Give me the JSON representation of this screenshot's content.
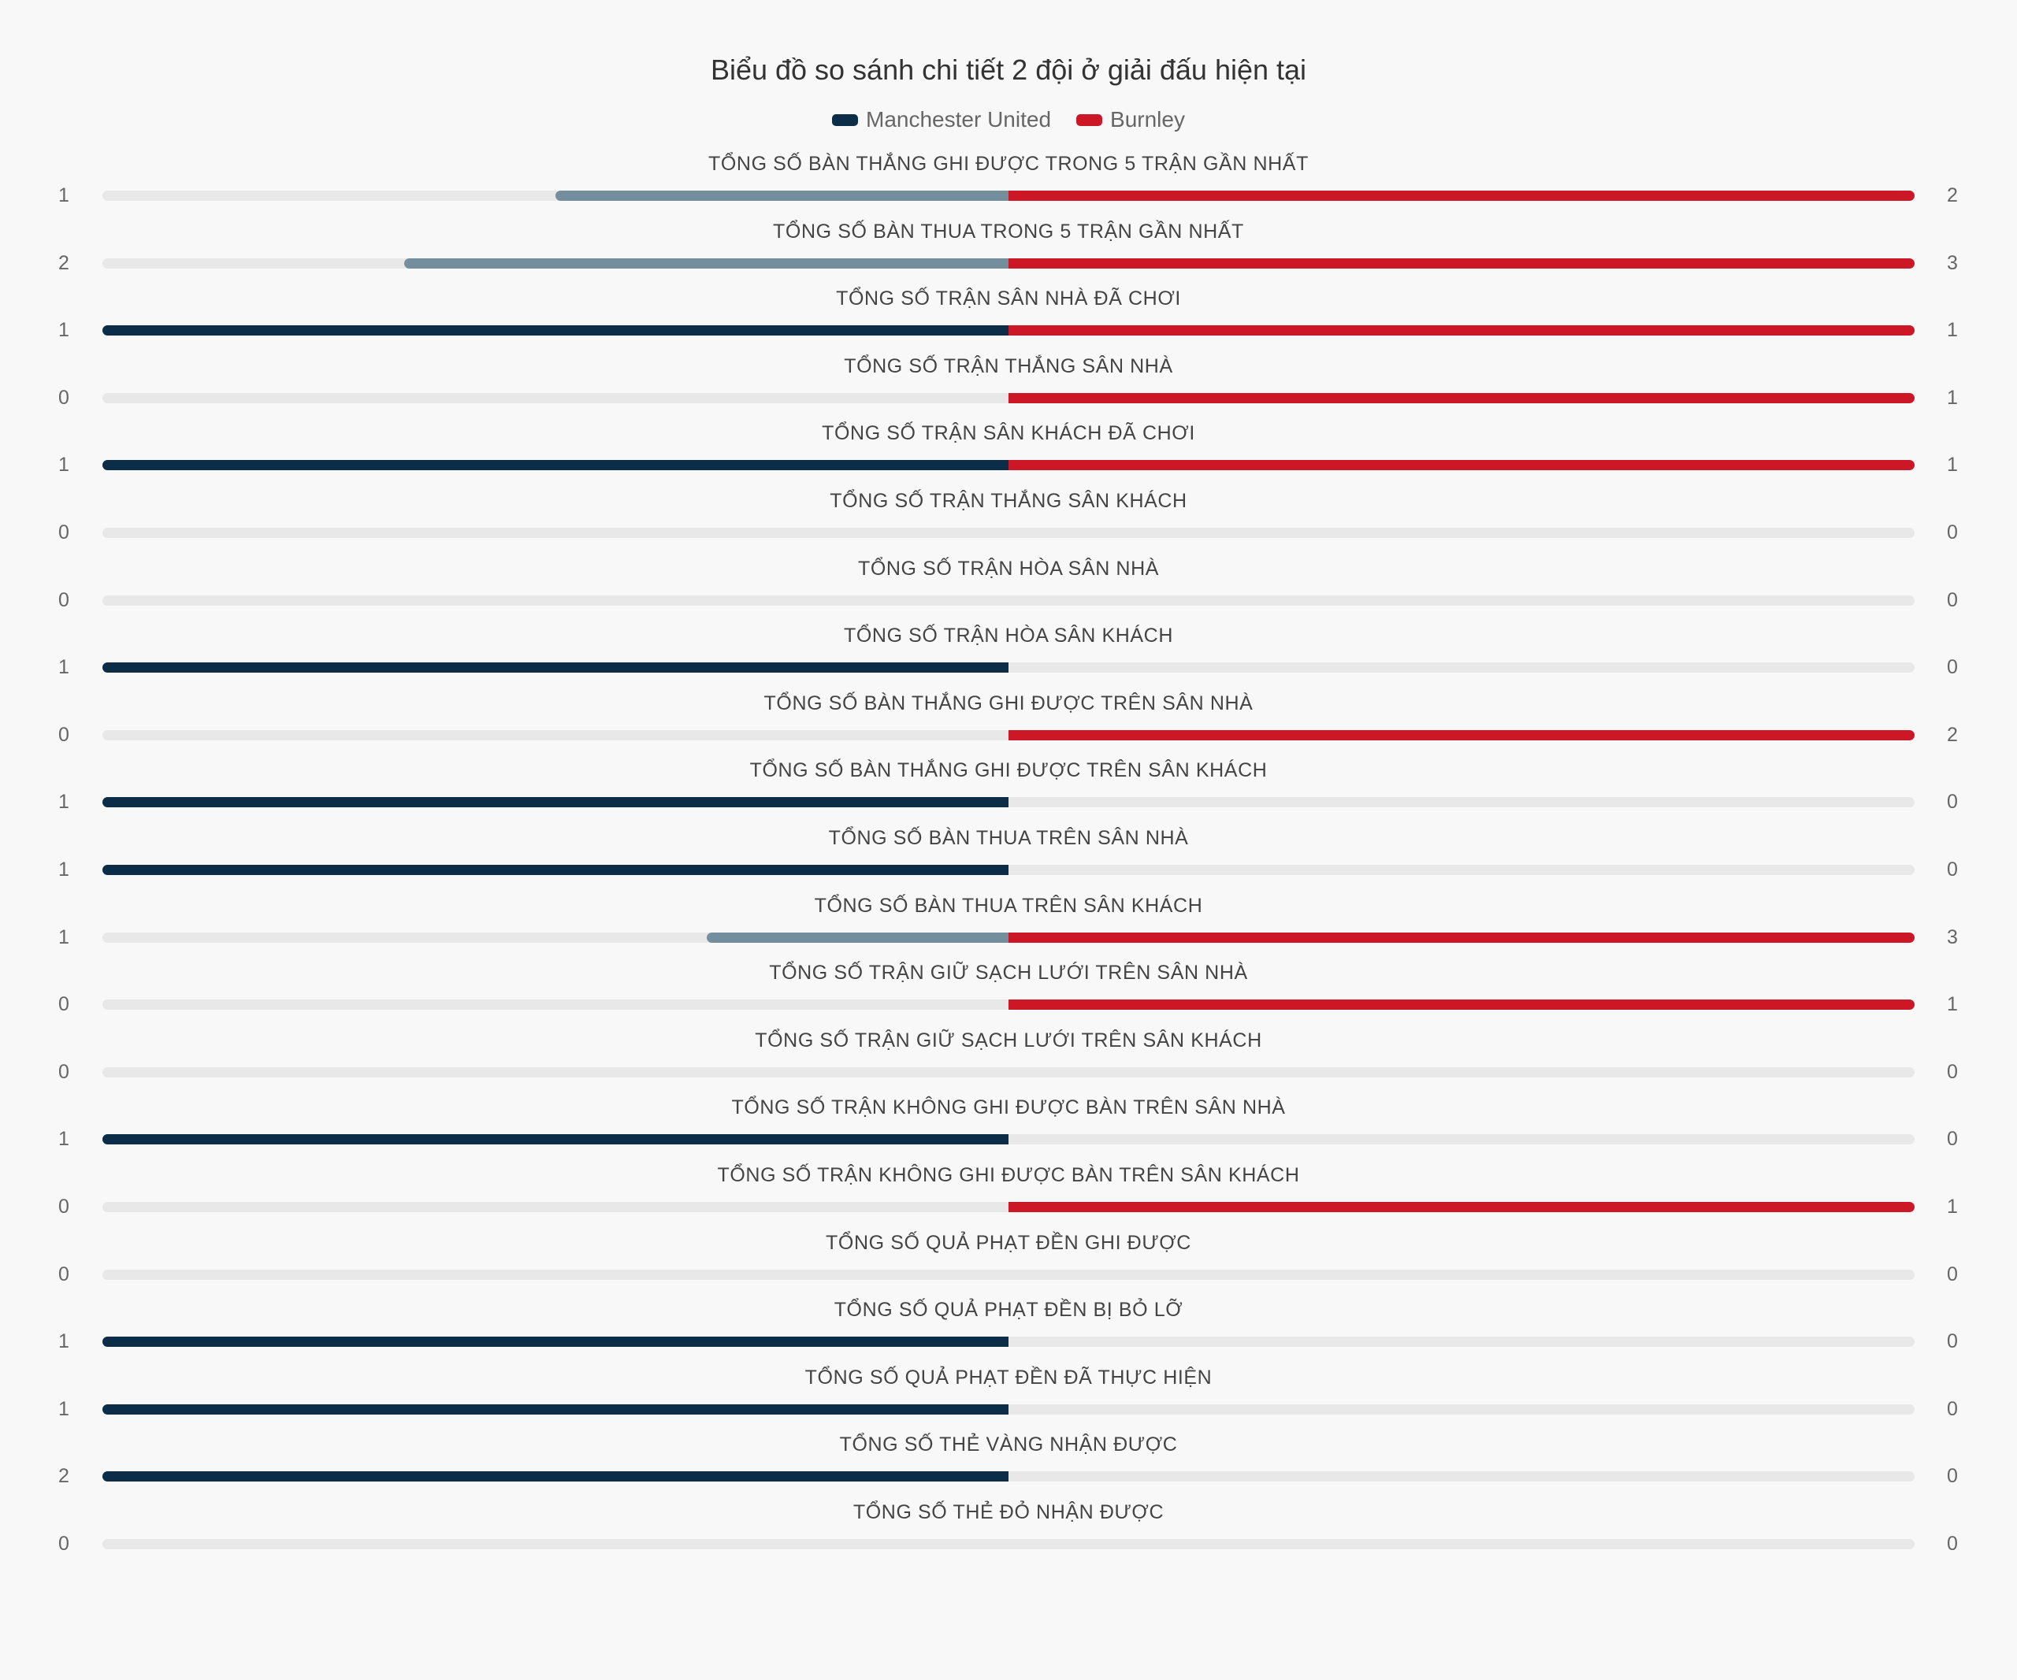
{
  "chart_data": {
    "type": "bar",
    "orientation": "horizontal-diverging",
    "title": "Biểu đồ so sánh chi tiết 2 đội ở giải đấu hiện tại",
    "legend": [
      {
        "name": "Manchester United",
        "color": "#0b2d48"
      },
      {
        "name": "Burnley",
        "color": "#cc1826"
      }
    ],
    "colors": {
      "home_dominant": "#0b2d48",
      "home_minor": "#738e9d",
      "away": "#cc1826",
      "track": "#e8e8e8"
    },
    "categories": [
      "TỔNG SỐ BÀN THẮNG GHI ĐƯỢC TRONG 5 TRẬN GẦN NHẤT",
      "TỔNG SỐ BÀN THUA TRONG 5 TRẬN GẦN NHẤT",
      "TỔNG SỐ TRẬN SÂN NHÀ ĐÃ CHƠI",
      "TỔNG SỐ TRẬN THẮNG SÂN NHÀ",
      "TỔNG SỐ TRẬN SÂN KHÁCH ĐÃ CHƠI",
      "TỔNG SỐ TRẬN THẮNG SÂN KHÁCH",
      "TỔNG SỐ TRẬN HÒA SÂN NHÀ",
      "TỔNG SỐ TRẬN HÒA SÂN KHÁCH",
      "TỔNG SỐ BÀN THẮNG GHI ĐƯỢC TRÊN SÂN NHÀ",
      "TỔNG SỐ BÀN THẮNG GHI ĐƯỢC TRÊN SÂN KHÁCH",
      "TỔNG SỐ BÀN THUA TRÊN SÂN NHÀ",
      "TỔNG SỐ BÀN THUA TRÊN SÂN KHÁCH",
      "TỔNG SỐ TRẬN GIỮ SẠCH LƯỚI TRÊN SÂN NHÀ",
      "TỔNG SỐ TRẬN GIỮ SẠCH LƯỚI TRÊN SÂN KHÁCH",
      "TỔNG SỐ TRẬN KHÔNG GHI ĐƯỢC BÀN TRÊN SÂN NHÀ",
      "TỔNG SỐ TRẬN KHÔNG GHI ĐƯỢC BÀN TRÊN SÂN KHÁCH",
      "TỔNG SỐ QUẢ PHẠT ĐỀN GHI ĐƯỢC",
      "TỔNG SỐ QUẢ PHẠT ĐỀN BỊ BỎ LỠ",
      "TỔNG SỐ QUẢ PHẠT ĐỀN ĐÃ THỰC HIỆN",
      "TỔNG SỐ THẺ VÀNG NHẬN ĐƯỢC",
      "TỔNG SỐ THẺ ĐỎ NHẬN ĐƯỢC"
    ],
    "series": [
      {
        "name": "Manchester United",
        "values": [
          1,
          2,
          1,
          0,
          1,
          0,
          0,
          1,
          0,
          1,
          1,
          1,
          0,
          0,
          1,
          0,
          0,
          1,
          1,
          2,
          0
        ]
      },
      {
        "name": "Burnley",
        "values": [
          2,
          3,
          1,
          1,
          1,
          0,
          0,
          0,
          2,
          0,
          0,
          3,
          1,
          0,
          0,
          1,
          0,
          0,
          0,
          0,
          0
        ]
      }
    ]
  }
}
